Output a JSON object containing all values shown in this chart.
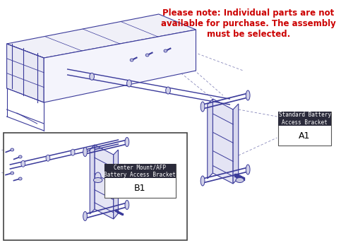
{
  "title_note": "Please note: Individual parts are not\navailable for purchase. The assembly\nmust be selected.",
  "title_color": "#cc0000",
  "title_fontsize": 8.5,
  "bg_color": "#ffffff",
  "label_A1_title": "Standard Battery\nAccess Bracket",
  "label_A1_code": "A1",
  "label_B1_title": "Center Mount/AFP\nBattery Access Bracket",
  "label_B1_code": "B1",
  "label_bg": "#2a2a3a",
  "label_text_color": "#ffffff",
  "label_code_color": "#000000",
  "drawing_color": "#3a3a9a",
  "fill_color": "#d8d8ee",
  "dashed_color": "#8888bb",
  "frame_color": "#555555"
}
